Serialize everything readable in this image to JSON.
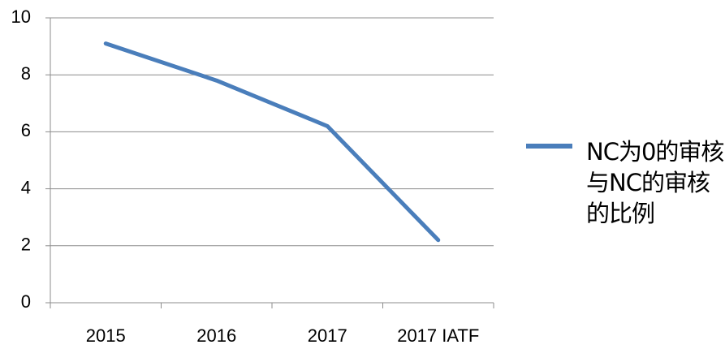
{
  "chart_data": {
    "type": "line",
    "categories": [
      "2015",
      "2016",
      "2017",
      "2017 IATF"
    ],
    "series": [
      {
        "name": "NC为0的审核与NC的审核的比例",
        "color": "#4a7ebb",
        "values": [
          9.1,
          7.8,
          6.2,
          2.2
        ]
      }
    ],
    "ylim": [
      0,
      10
    ],
    "yticks": [
      0,
      2,
      4,
      6,
      8,
      10
    ],
    "grid": true,
    "legend": "right"
  }
}
